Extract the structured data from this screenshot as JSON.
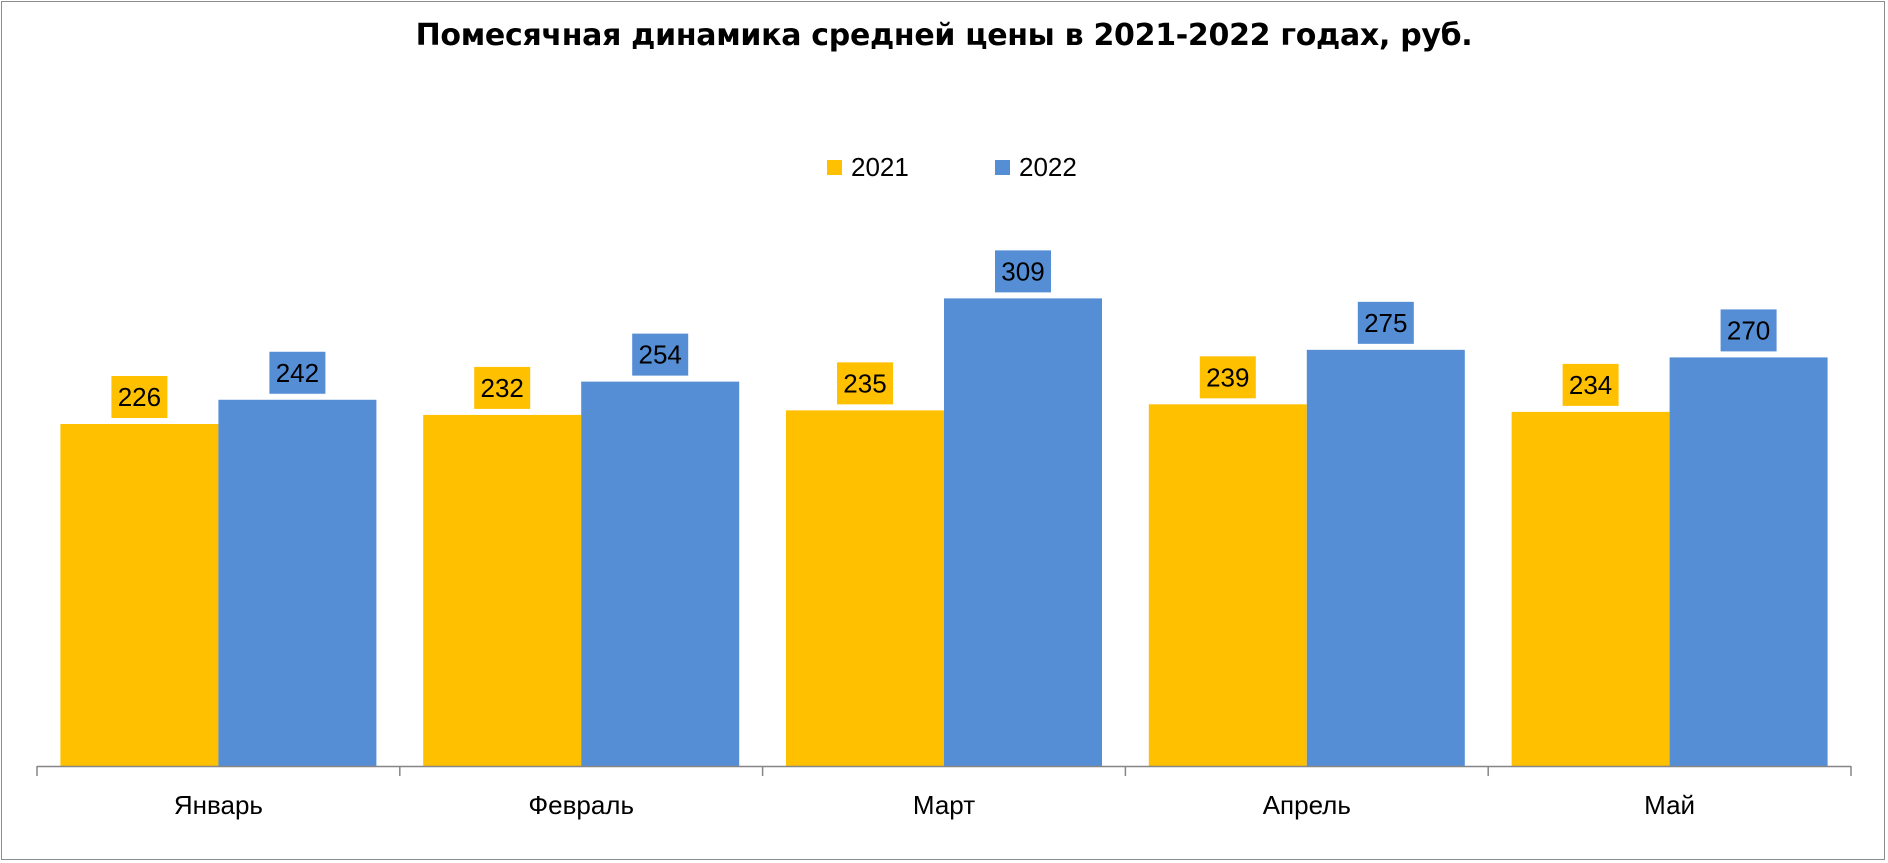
{
  "chart_data": {
    "type": "bar",
    "title": "Помесячная динамика средней цены в 2021-2022 годах, руб.",
    "categories": [
      "Январь",
      "Февраль",
      "Март",
      "Апрель",
      "Май"
    ],
    "series": [
      {
        "name": "2021",
        "values": [
          226,
          232,
          235,
          239,
          234
        ],
        "color": "#FFC000"
      },
      {
        "name": "2022",
        "values": [
          242,
          254,
          309,
          275,
          270
        ],
        "color": "#558ED5"
      }
    ],
    "ylim": [
      0,
      450
    ],
    "grid": false,
    "legend_position": "top",
    "data_labels": true
  }
}
